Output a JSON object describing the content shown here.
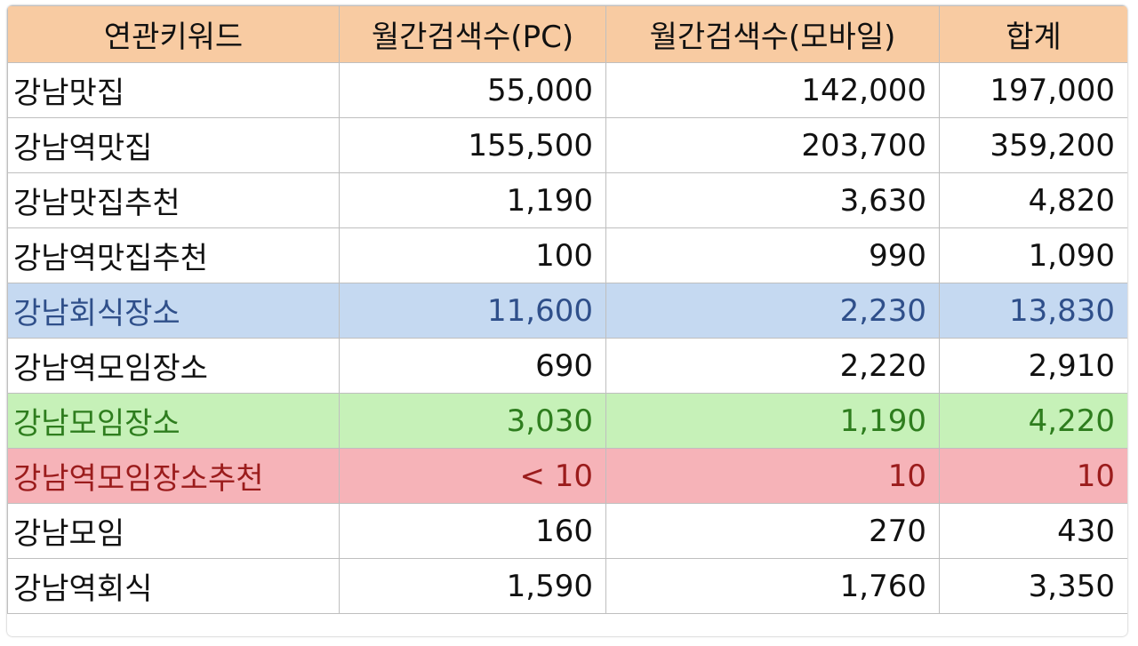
{
  "table": {
    "headers": [
      "연관키워드",
      "월간검색수(PC)",
      "월간검색수(모바일)",
      "합계"
    ],
    "rows": [
      {
        "keyword": "강남맛집",
        "pc": "55,000",
        "mobile": "142,000",
        "total": "197,000",
        "highlight": "none"
      },
      {
        "keyword": "강남역맛집",
        "pc": "155,500",
        "mobile": "203,700",
        "total": "359,200",
        "highlight": "none"
      },
      {
        "keyword": "강남맛집추천",
        "pc": "1,190",
        "mobile": "3,630",
        "total": "4,820",
        "highlight": "none"
      },
      {
        "keyword": "강남역맛집추천",
        "pc": "100",
        "mobile": "990",
        "total": "1,090",
        "highlight": "none"
      },
      {
        "keyword": "강남회식장소",
        "pc": "11,600",
        "mobile": "2,230",
        "total": "13,830",
        "highlight": "blue"
      },
      {
        "keyword": "강남역모임장소",
        "pc": "690",
        "mobile": "2,220",
        "total": "2,910",
        "highlight": "none"
      },
      {
        "keyword": "강남모임장소",
        "pc": "3,030",
        "mobile": "1,190",
        "total": "4,220",
        "highlight": "green"
      },
      {
        "keyword": "강남역모임장소추천",
        "pc": "< 10",
        "mobile": "10",
        "total": "10",
        "highlight": "red"
      },
      {
        "keyword": "강남모임",
        "pc": "160",
        "mobile": "270",
        "total": "430",
        "highlight": "none"
      },
      {
        "keyword": "강남역회식",
        "pc": "1,590",
        "mobile": "1,760",
        "total": "3,350",
        "highlight": "none"
      }
    ]
  },
  "colors": {
    "header_bg": "#f8cba2",
    "blue_row_bg": "#c5d9f1",
    "green_row_bg": "#c6f1b8",
    "red_row_bg": "#f6b3b8"
  }
}
